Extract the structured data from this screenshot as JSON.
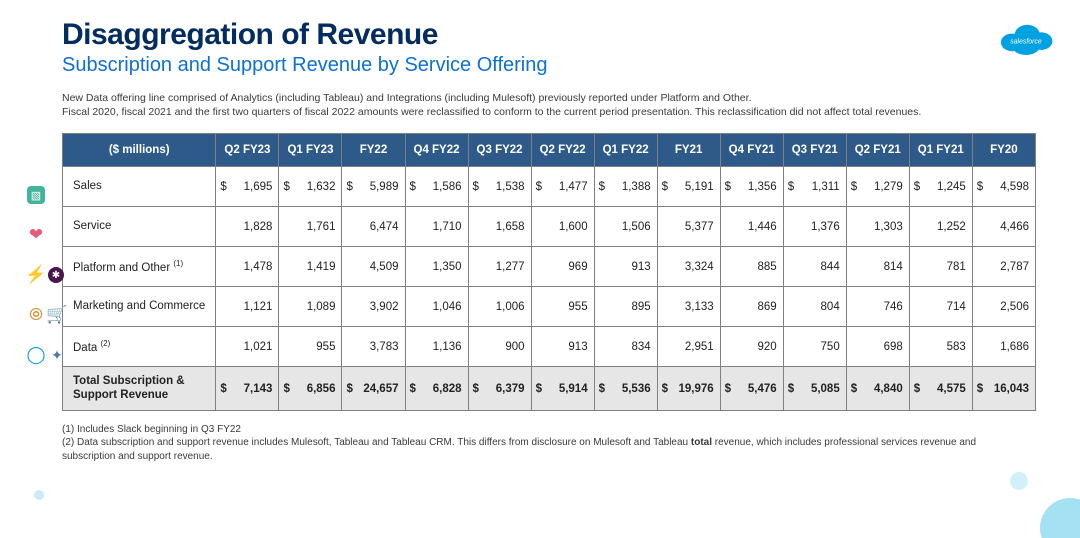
{
  "header": {
    "title": "Disaggregation of Revenue",
    "subtitle": "Subscription and Support Revenue by Service Offering",
    "logo_text": "salesforce",
    "logo_color": "#00a1e0"
  },
  "note_lines": [
    "New Data offering line comprised of Analytics (including Tableau) and Integrations (including Mulesoft) previously reported under Platform and Other.",
    "Fiscal 2020, fiscal 2021 and the first two quarters of fiscal 2022 amounts were reclassified to conform to the current period presentation. This reclassification did not affect total revenues."
  ],
  "table": {
    "type": "table",
    "header_bg": "#2e5a8a",
    "header_fg": "#ffffff",
    "border_color": "#808080",
    "total_bg": "#e6e6e6",
    "currency_header": "($ millions)",
    "columns": [
      "Q2 FY23",
      "Q1 FY23",
      "FY22",
      "Q4 FY22",
      "Q3 FY22",
      "Q2 FY22",
      "Q1 FY22",
      "FY21",
      "Q4 FY21",
      "Q3 FY21",
      "Q2 FY21",
      "Q1 FY21",
      "FY20"
    ],
    "dollar_row_indices": [
      0
    ],
    "rows": [
      {
        "label": "Sales",
        "footnote": "",
        "values": [
          "1,695",
          "1,632",
          "5,989",
          "1,586",
          "1,538",
          "1,477",
          "1,388",
          "5,191",
          "1,356",
          "1,311",
          "1,279",
          "1,245",
          "4,598"
        ]
      },
      {
        "label": "Service",
        "footnote": "",
        "values": [
          "1,828",
          "1,761",
          "6,474",
          "1,710",
          "1,658",
          "1,600",
          "1,506",
          "5,377",
          "1,446",
          "1,376",
          "1,303",
          "1,252",
          "4,466"
        ]
      },
      {
        "label": "Platform and Other",
        "footnote": "(1)",
        "values": [
          "1,478",
          "1,419",
          "4,509",
          "1,350",
          "1,277",
          "969",
          "913",
          "3,324",
          "885",
          "844",
          "814",
          "781",
          "2,787"
        ]
      },
      {
        "label": "Marketing and Commerce",
        "footnote": "",
        "values": [
          "1,121",
          "1,089",
          "3,902",
          "1,046",
          "1,006",
          "955",
          "895",
          "3,133",
          "869",
          "804",
          "746",
          "714",
          "2,506"
        ]
      },
      {
        "label": "Data",
        "footnote": "(2)",
        "values": [
          "1,021",
          "955",
          "3,783",
          "1,136",
          "900",
          "913",
          "834",
          "2,951",
          "920",
          "750",
          "698",
          "583",
          "1,686"
        ]
      }
    ],
    "total": {
      "label": "Total Subscription & Support Revenue",
      "values": [
        "7,143",
        "6,856",
        "24,657",
        "6,828",
        "6,379",
        "5,914",
        "5,536",
        "19,976",
        "5,476",
        "5,085",
        "4,840",
        "4,575",
        "16,043"
      ]
    }
  },
  "footnotes": [
    "(1) Includes Slack beginning in Q3 FY22",
    "(2) Data subscription and support revenue includes Mulesoft, Tableau and Tableau CRM. This differs from disclosure on Mulesoft and Tableau total revenue, which includes professional services revenue and subscription and support revenue."
  ],
  "icons": {
    "rows": [
      [
        {
          "name": "sales-icon",
          "glyph": "▧",
          "cls": "sales"
        }
      ],
      [
        {
          "name": "service-icon",
          "glyph": "❤",
          "cls": "service"
        }
      ],
      [
        {
          "name": "lightning-icon",
          "glyph": "⚡",
          "cls": "lightning"
        },
        {
          "name": "slack-icon",
          "glyph": "✱",
          "cls": "slack"
        }
      ],
      [
        {
          "name": "search-icon",
          "glyph": "⦾",
          "cls": "search"
        },
        {
          "name": "cart-icon",
          "glyph": "🛒",
          "cls": "cart"
        }
      ],
      [
        {
          "name": "mulesoft-icon",
          "glyph": "◯",
          "cls": "mulesoft"
        },
        {
          "name": "tableau-icon",
          "glyph": "✦",
          "cls": "tableau"
        }
      ]
    ]
  }
}
